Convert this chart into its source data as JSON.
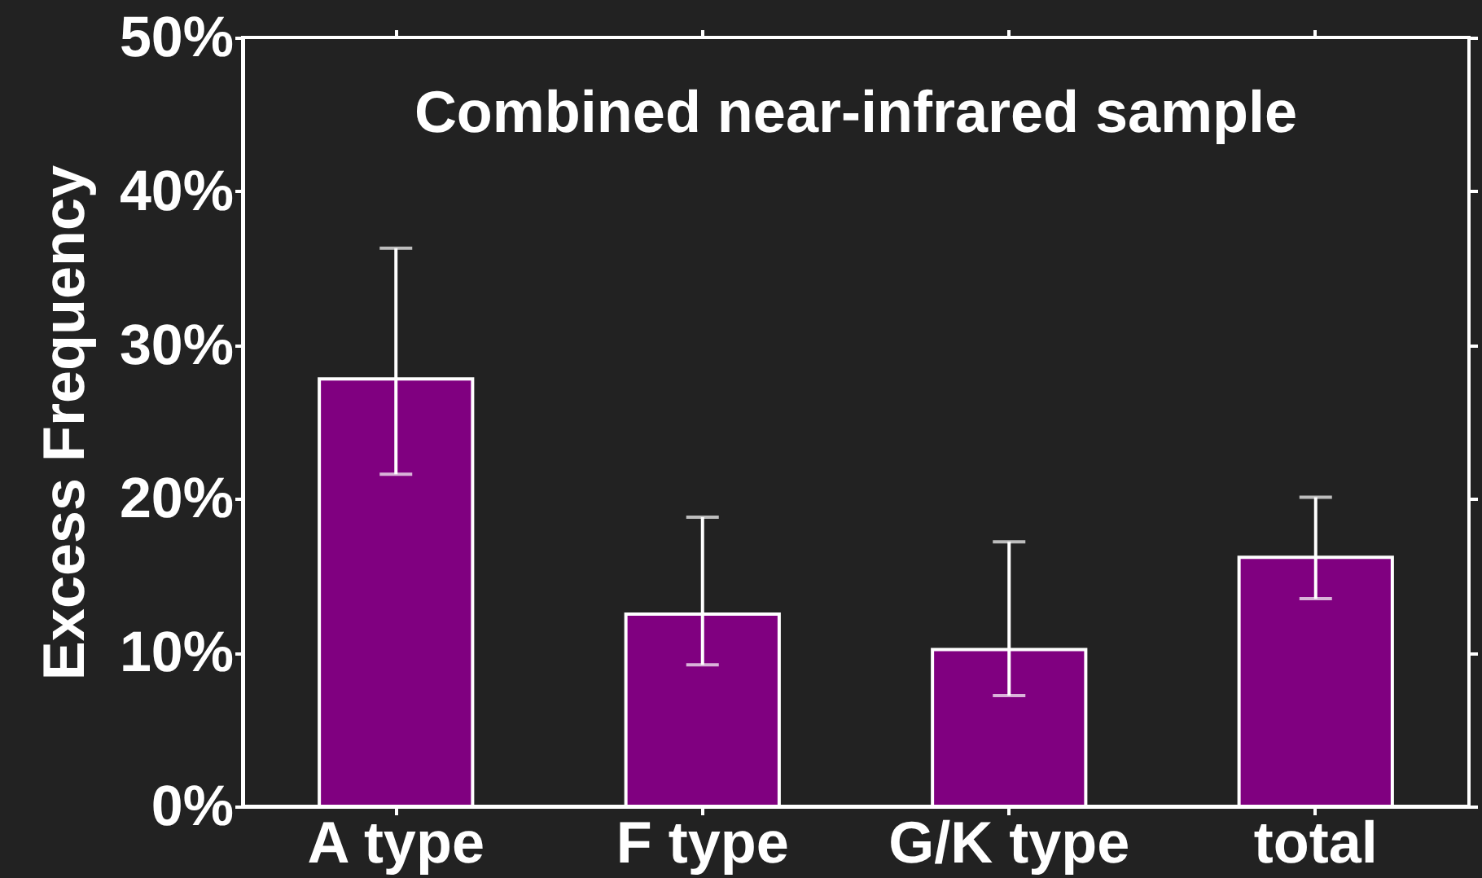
{
  "chart_data": {
    "type": "bar",
    "title": "Combined near-infrared sample",
    "ylabel": "Excess Frequency",
    "categories": [
      "A type",
      "F type",
      "G/K type",
      "total"
    ],
    "values": [
      27.8,
      12.5,
      10.2,
      16.2
    ],
    "errors": [
      [
        21.6,
        36.3
      ],
      [
        9.2,
        18.8
      ],
      [
        7.2,
        17.2
      ],
      [
        13.5,
        20.1
      ]
    ],
    "color": "#800080",
    "ylim": [
      0,
      50
    ],
    "yticks": [
      {
        "value": 0,
        "label": "0%"
      },
      {
        "value": 10,
        "label": "10%"
      },
      {
        "value": 20,
        "label": "20%"
      },
      {
        "value": 30,
        "label": "30%"
      },
      {
        "value": 40,
        "label": "40%"
      },
      {
        "value": 50,
        "label": "50%"
      }
    ]
  }
}
